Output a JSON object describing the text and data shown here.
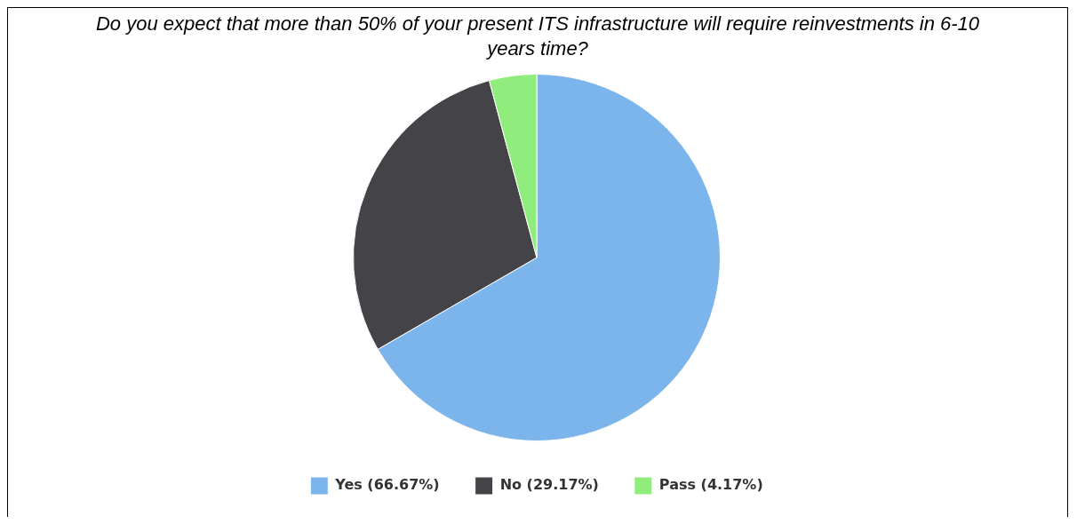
{
  "chart_data": {
    "type": "pie",
    "title": "Do you expect that more than 50% of your present ITS infrastructure will require reinvestments in 6-10 years time?",
    "categories": [
      "Yes (66.67%)",
      "No (29.17%)",
      "Pass (4.17%)"
    ],
    "values": [
      66.67,
      29.17,
      4.17
    ],
    "colors": [
      "#7cb5ec",
      "#434348",
      "#90ed7d"
    ],
    "legend": "bottom"
  }
}
